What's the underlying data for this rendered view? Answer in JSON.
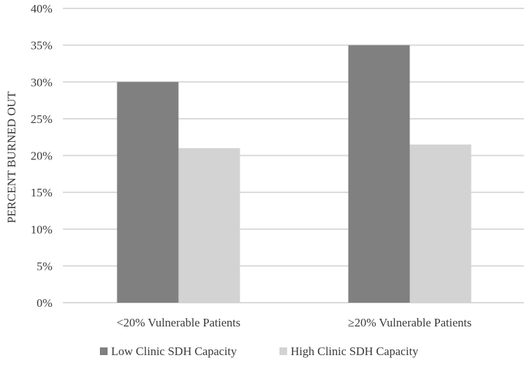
{
  "chart_data": {
    "type": "bar",
    "categories": [
      "<20% Vulnerable Patients",
      "≥20% Vulnerable Patients"
    ],
    "series": [
      {
        "name": "Low Clinic SDH Capacity",
        "values": [
          30,
          35
        ],
        "color": "#808080"
      },
      {
        "name": "High Clinic SDH Capacity",
        "values": [
          21,
          21.5
        ],
        "color": "#d3d3d3"
      }
    ],
    "ylabel": "PERCENT BURNED OUT",
    "xlabel": "",
    "ylim": [
      0,
      40
    ],
    "yticks": [
      0,
      5,
      10,
      15,
      20,
      25,
      30,
      35,
      40
    ],
    "ytick_labels": [
      "0%",
      "5%",
      "10%",
      "15%",
      "20%",
      "25%",
      "30%",
      "35%",
      "40%"
    ],
    "grid": true,
    "gridline_color": "#d9d9d9",
    "legend_position": "bottom"
  }
}
